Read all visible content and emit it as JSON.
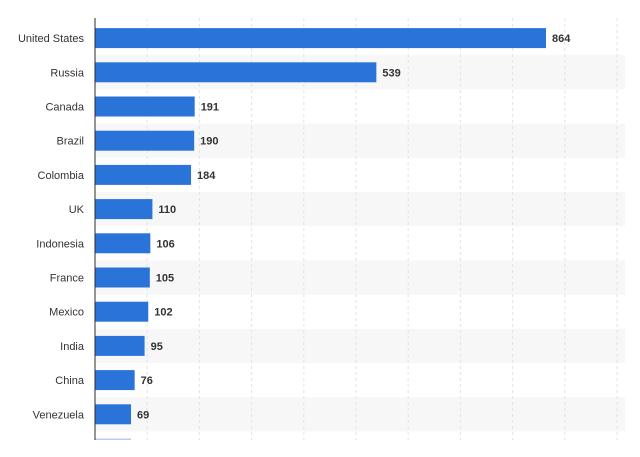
{
  "chart_data": {
    "type": "bar",
    "orientation": "horizontal",
    "categories": [
      "United States",
      "Russia",
      "Canada",
      "Brazil",
      "Colombia",
      "UK",
      "Indonesia",
      "France",
      "Mexico",
      "India",
      "China",
      "Venezuela"
    ],
    "values": [
      864,
      539,
      191,
      190,
      184,
      110,
      106,
      105,
      102,
      95,
      76,
      69
    ],
    "xlim": [
      0,
      1000
    ],
    "grid": true,
    "legend": "none",
    "colors": {
      "bar": "#2a74d9",
      "grid": "#e3e3e3",
      "band": "#f7f7f7",
      "axis": "#2b2b2b",
      "text": "#333333"
    }
  }
}
